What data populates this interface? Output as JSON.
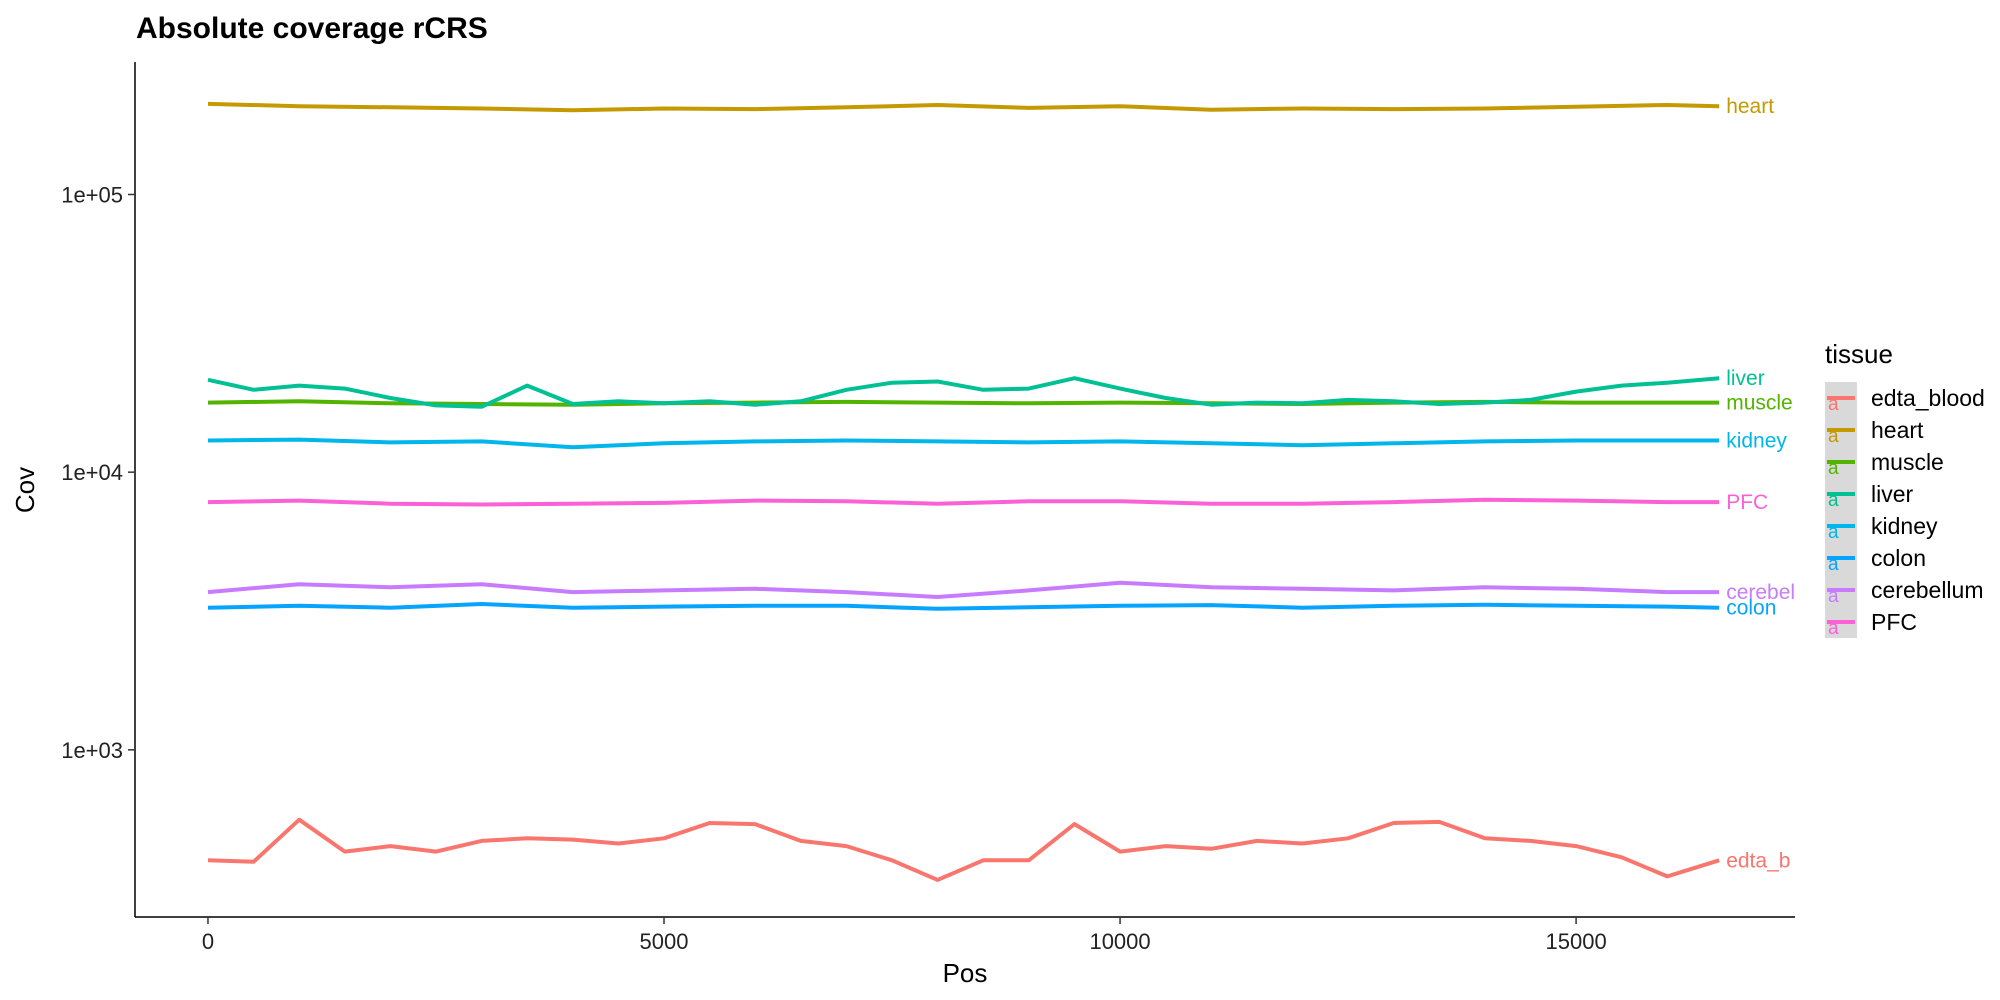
{
  "chart_data": {
    "type": "line",
    "title": "Absolute coverage rCRS",
    "xlabel": "Pos",
    "ylabel": "Cov",
    "y_scale": "log10",
    "xlim": [
      -800,
      17400
    ],
    "ylim": [
      250,
      300000
    ],
    "x_ticks": [
      0,
      5000,
      10000,
      15000
    ],
    "x_tick_labels": [
      "0",
      "5000",
      "10000",
      "15000"
    ],
    "y_ticks": [
      1000,
      10000,
      100000
    ],
    "y_tick_labels": [
      "1e+03",
      "1e+04",
      "1e+05"
    ],
    "grid": false,
    "legend": {
      "title": "tissue",
      "position": "right",
      "entries": [
        "edta_blood",
        "heart",
        "muscle",
        "liver",
        "kidney",
        "colon",
        "cerebellum",
        "PFC"
      ]
    },
    "series": [
      {
        "name": "edta_blood",
        "color": "#F8766D",
        "end_label": "edta_b",
        "x": [
          0,
          500,
          1000,
          1500,
          2000,
          2500,
          3000,
          3500,
          4000,
          4500,
          5000,
          5500,
          6000,
          6500,
          7000,
          7500,
          8000,
          8500,
          9000,
          9500,
          10000,
          10500,
          11000,
          11500,
          12000,
          12500,
          13000,
          13500,
          14000,
          14500,
          15000,
          15500,
          16000,
          16569
        ],
        "values": [
          400,
          395,
          560,
          430,
          450,
          430,
          470,
          480,
          475,
          460,
          480,
          545,
          540,
          470,
          450,
          400,
          340,
          400,
          400,
          540,
          430,
          450,
          440,
          470,
          460,
          480,
          545,
          550,
          480,
          470,
          450,
          410,
          350,
          400
        ]
      },
      {
        "name": "heart",
        "color": "#C49A00",
        "end_label": "heart",
        "x": [
          0,
          1000,
          2000,
          3000,
          4000,
          5000,
          6000,
          7000,
          8000,
          9000,
          10000,
          11000,
          12000,
          13000,
          14000,
          15000,
          16000,
          16569
        ],
        "values": [
          212000,
          208000,
          206000,
          204000,
          201000,
          204000,
          203000,
          206000,
          210000,
          205000,
          208000,
          202000,
          204000,
          203000,
          204000,
          207000,
          210000,
          208000
        ]
      },
      {
        "name": "muscle",
        "color": "#53B400",
        "end_label": "muscle",
        "x": [
          0,
          1000,
          2000,
          3000,
          4000,
          5000,
          6000,
          7000,
          8000,
          9000,
          10000,
          11000,
          12000,
          13000,
          14000,
          15000,
          16000,
          16569
        ],
        "values": [
          17800,
          18000,
          17700,
          17600,
          17500,
          17700,
          17800,
          17900,
          17800,
          17700,
          17800,
          17700,
          17600,
          17800,
          17900,
          17800,
          17800,
          17800
        ]
      },
      {
        "name": "liver",
        "color": "#00C094",
        "end_label": "liver",
        "x": [
          0,
          500,
          1000,
          1500,
          2000,
          2500,
          3000,
          3500,
          4000,
          4500,
          5000,
          5500,
          6000,
          6500,
          7000,
          7500,
          8000,
          8500,
          9000,
          9500,
          10000,
          10500,
          11000,
          11500,
          12000,
          12500,
          13000,
          13500,
          14000,
          14500,
          15000,
          15500,
          16000,
          16569
        ],
        "values": [
          21500,
          19800,
          20500,
          20000,
          18500,
          17400,
          17200,
          20500,
          17600,
          18000,
          17700,
          18000,
          17500,
          18000,
          19800,
          21000,
          21200,
          19800,
          20000,
          21800,
          20000,
          18500,
          17500,
          17800,
          17700,
          18200,
          18000,
          17600,
          17800,
          18200,
          19500,
          20500,
          21000,
          21800
        ]
      },
      {
        "name": "kidney",
        "color": "#00B6EB",
        "end_label": "kidney",
        "x": [
          0,
          1000,
          2000,
          3000,
          4000,
          5000,
          6000,
          7000,
          8000,
          9000,
          10000,
          11000,
          12000,
          13000,
          14000,
          15000,
          16000,
          16569
        ],
        "values": [
          13000,
          13100,
          12800,
          12900,
          12300,
          12700,
          12900,
          13000,
          12900,
          12800,
          12900,
          12700,
          12500,
          12700,
          12900,
          13000,
          13000,
          13000
        ]
      },
      {
        "name": "colon",
        "color": "#06A4FF",
        "end_label": "colon",
        "x": [
          0,
          1000,
          2000,
          3000,
          4000,
          5000,
          6000,
          7000,
          8000,
          9000,
          10000,
          11000,
          12000,
          13000,
          14000,
          15000,
          16000,
          16569
        ],
        "values": [
          3250,
          3300,
          3250,
          3350,
          3250,
          3280,
          3300,
          3300,
          3220,
          3260,
          3300,
          3320,
          3250,
          3300,
          3330,
          3300,
          3280,
          3250
        ]
      },
      {
        "name": "cerebellum",
        "color": "#C77CFF",
        "end_label": "cerebellum",
        "x": [
          0,
          1000,
          2000,
          3000,
          4000,
          5000,
          6000,
          7000,
          8000,
          9000,
          10000,
          11000,
          12000,
          13000,
          14000,
          15000,
          16000,
          16569
        ],
        "values": [
          3700,
          3950,
          3850,
          3950,
          3700,
          3750,
          3800,
          3700,
          3550,
          3750,
          4000,
          3850,
          3800,
          3750,
          3850,
          3800,
          3700,
          3700
        ]
      },
      {
        "name": "PFC",
        "color": "#FB61D7",
        "end_label": "PFC",
        "x": [
          0,
          1000,
          2000,
          3000,
          4000,
          5000,
          6000,
          7000,
          8000,
          9000,
          10000,
          11000,
          12000,
          13000,
          14000,
          15000,
          16000,
          16569
        ],
        "values": [
          7800,
          7900,
          7700,
          7650,
          7700,
          7750,
          7900,
          7850,
          7700,
          7850,
          7850,
          7700,
          7700,
          7800,
          7950,
          7900,
          7800,
          7800
        ]
      }
    ]
  }
}
